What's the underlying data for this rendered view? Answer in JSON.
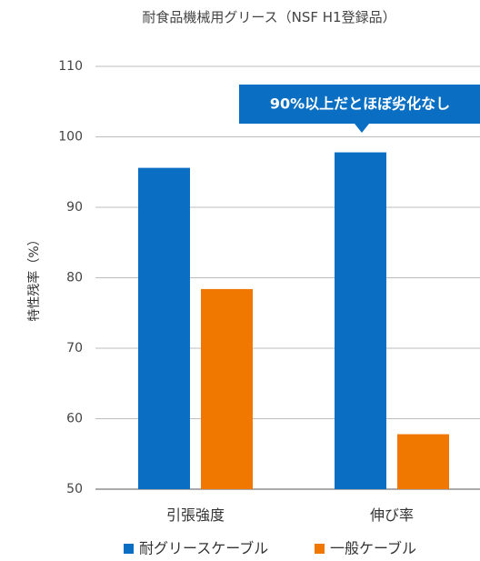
{
  "chart_data": {
    "type": "bar",
    "title": "耐食品機械用グリース（NSF H1登録品）",
    "ylabel": "特性残率（%）",
    "xlabel": "",
    "categories": [
      "引張強度",
      "伸び率"
    ],
    "series": [
      {
        "name": "耐グリースケーブル",
        "values": [
          95.6,
          97.8
        ],
        "color": "#0a6fc2"
      },
      {
        "name": "一般ケーブル",
        "values": [
          78.4,
          57.8
        ],
        "color": "#f07800"
      }
    ],
    "ylim": [
      50,
      110
    ],
    "yticks": [
      50,
      60,
      70,
      80,
      90,
      100,
      110
    ],
    "grid": true,
    "legend_position": "bottom",
    "annotation": {
      "text": "90%以上だとほぼ劣化なし",
      "color": "#0a6fc2"
    }
  }
}
